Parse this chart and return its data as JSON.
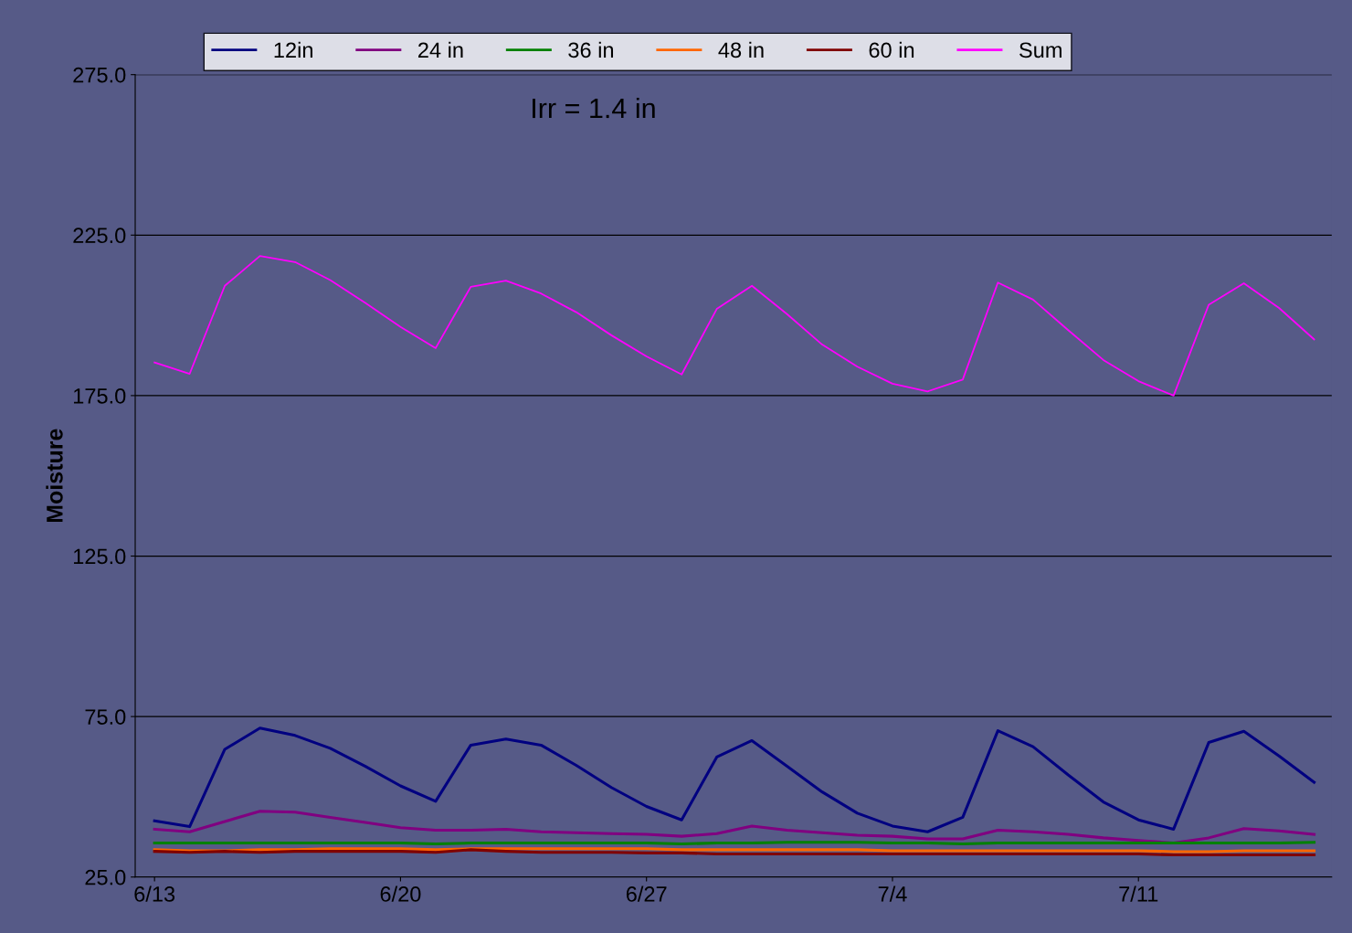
{
  "chart_data": {
    "type": "line",
    "ylabel": "Moisture",
    "annotations": [
      "Irr = 1.4 in"
    ],
    "categories": [
      "6/13",
      null,
      null,
      null,
      null,
      null,
      null,
      "6/20",
      null,
      null,
      null,
      null,
      null,
      null,
      "6/27",
      null,
      null,
      null,
      null,
      null,
      null,
      "7/4",
      null,
      null,
      null,
      null,
      null,
      null,
      "7/11",
      null,
      null,
      null,
      null,
      null
    ],
    "series": [
      {
        "name": "12in",
        "color": "#000080",
        "values": [
          42.5,
          40.7,
          64.8,
          71.4,
          69.1,
          65.1,
          59.5,
          53.4,
          48.6,
          66.1,
          68.0,
          66.1,
          59.8,
          52.9,
          47.0,
          42.8,
          62.4,
          67.5,
          59.5,
          51.5,
          44.9,
          40.9,
          39.1,
          43.6,
          70.6,
          65.6,
          56.8,
          48.4,
          42.8,
          39.9,
          66.9,
          70.4,
          62.7,
          54.5
        ]
      },
      {
        "name": "24 in",
        "color": "#800080",
        "values": [
          39.9,
          39.1,
          42.3,
          45.5,
          45.2,
          43.6,
          42.0,
          40.4,
          39.6,
          39.6,
          39.9,
          39.1,
          38.8,
          38.5,
          38.3,
          37.7,
          38.5,
          40.9,
          39.6,
          38.8,
          38.0,
          37.7,
          36.9,
          36.9,
          39.6,
          39.1,
          38.3,
          37.2,
          36.4,
          35.6,
          37.2,
          40.1,
          39.4,
          38.3
        ]
      },
      {
        "name": "36 in",
        "color": "#008000",
        "values": [
          35.6,
          35.6,
          35.6,
          35.6,
          35.6,
          35.6,
          35.6,
          35.6,
          35.3,
          35.6,
          35.6,
          35.6,
          35.6,
          35.6,
          35.6,
          35.3,
          35.6,
          35.6,
          35.8,
          35.8,
          35.8,
          35.6,
          35.6,
          35.3,
          35.6,
          35.6,
          35.6,
          35.6,
          35.6,
          35.6,
          35.6,
          35.6,
          35.6,
          35.8
        ]
      },
      {
        "name": "48 in",
        "color": "#ff6600",
        "values": [
          33.5,
          33.2,
          33.2,
          33.5,
          33.5,
          33.8,
          33.8,
          33.8,
          33.5,
          33.8,
          33.8,
          33.8,
          33.8,
          33.8,
          33.8,
          33.5,
          33.5,
          33.5,
          33.5,
          33.5,
          33.5,
          33.2,
          33.2,
          33.2,
          33.2,
          33.2,
          33.2,
          33.2,
          33.2,
          32.9,
          32.9,
          33.2,
          33.2,
          33.2
        ]
      },
      {
        "name": "60 in",
        "color": "#800000",
        "values": [
          33.0,
          32.7,
          33.0,
          32.7,
          33.0,
          33.0,
          33.0,
          33.0,
          32.7,
          33.5,
          33.0,
          32.7,
          32.7,
          32.7,
          32.5,
          32.5,
          32.2,
          32.2,
          32.2,
          32.2,
          32.2,
          32.2,
          32.2,
          32.2,
          32.2,
          32.2,
          32.2,
          32.2,
          32.2,
          31.9,
          31.9,
          31.9,
          31.9,
          31.9
        ]
      },
      {
        "name": "Sum",
        "color": "#ff00ff",
        "values": [
          185.3,
          181.8,
          209.2,
          218.5,
          216.6,
          211.0,
          203.9,
          196.4,
          189.8,
          208.9,
          210.8,
          206.8,
          201.0,
          193.8,
          187.2,
          181.6,
          202.0,
          209.2,
          200.4,
          190.9,
          184.0,
          178.7,
          176.3,
          180.0,
          210.2,
          204.9,
          195.4,
          186.1,
          179.5,
          175.0,
          203.3,
          210.0,
          202.3,
          192.5
        ]
      }
    ],
    "ylim": [
      25,
      275
    ],
    "yticks": [
      {
        "value": 25,
        "label": "25.0"
      },
      {
        "value": 75,
        "label": "75.0"
      },
      {
        "value": 125,
        "label": "125.0"
      },
      {
        "value": 175,
        "label": "175.0"
      },
      {
        "value": 225,
        "label": "225.0"
      },
      {
        "value": 275,
        "label": "275.0"
      }
    ],
    "grid": "y",
    "legend": "top",
    "marker": "none",
    "line_style": "solid"
  }
}
